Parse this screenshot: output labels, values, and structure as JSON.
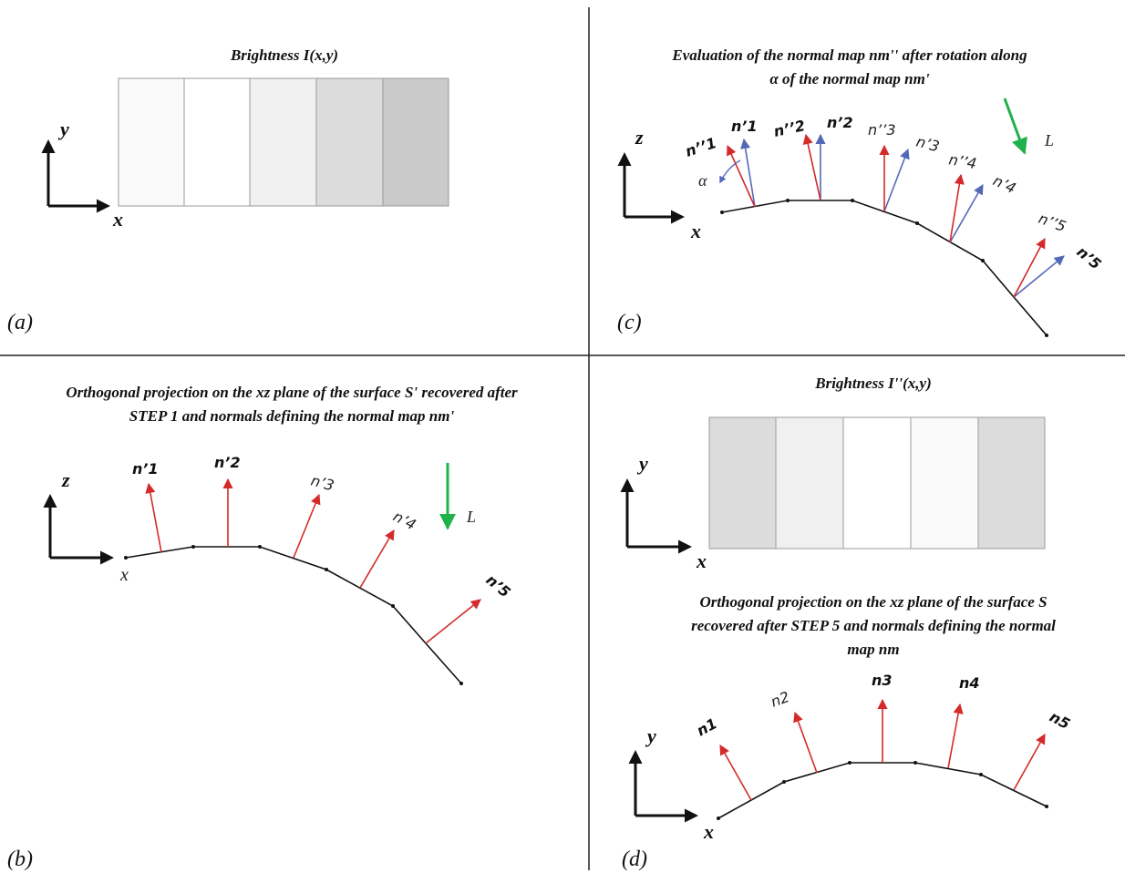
{
  "colors": {
    "normal_red": "#d42a2a",
    "normal_blue": "#5468b8",
    "light_green": "#1fb14a",
    "line": "#111111",
    "divider": "#222222"
  },
  "panels": {
    "a": {
      "label": "(a)",
      "title": "Brightness I(x,y)",
      "axis_x": "x",
      "axis_y": "y",
      "strip_colors": [
        "#fafafa",
        "#ffffff",
        "#f0f0f0",
        "#dcdcdc",
        "#cacaca"
      ]
    },
    "b": {
      "label": "(b)",
      "title_line1": "Orthogonal projection on the xz plane of the surface S' recovered  after",
      "title_line2": "STEP 1 and normals defining the normal map nm'",
      "axis_x": "x",
      "axis_z": "z",
      "light_label": "L",
      "normals": [
        "n’1",
        "n’2",
        "n’3",
        "n’4",
        "n’5"
      ]
    },
    "c": {
      "label": "(c)",
      "title_line1": "Evaluation of the normal map nm'' after rotation along",
      "title_line2": "α of  the normal map nm'",
      "axis_x": "x",
      "axis_z": "z",
      "light_label": "L",
      "angle_label": "α",
      "normals_rotated": [
        "n’’1",
        "n’’2",
        "n’’3",
        "n’’4",
        "n’’5"
      ],
      "normals_original": [
        "n’1",
        "n’2",
        "n’3",
        "n’4",
        "n’5"
      ]
    },
    "d": {
      "label": "(d)",
      "title": "Brightness I''(x,y)",
      "axis_x": "x",
      "axis_y": "y",
      "strip_colors": [
        "#dcdcdc",
        "#f0f0f0",
        "#ffffff",
        "#fafafa",
        "#dcdcdc"
      ],
      "caption_line1": "Orthogonal projection on the xz plane of the surface S",
      "caption_line2": "recovered  after STEP 5 and normals defining the normal",
      "caption_line3": "map nm",
      "caption_axis_x": "x",
      "caption_axis_y": "y",
      "normals": [
        "n1",
        "n2",
        "n3",
        "n4",
        "n5"
      ]
    }
  }
}
